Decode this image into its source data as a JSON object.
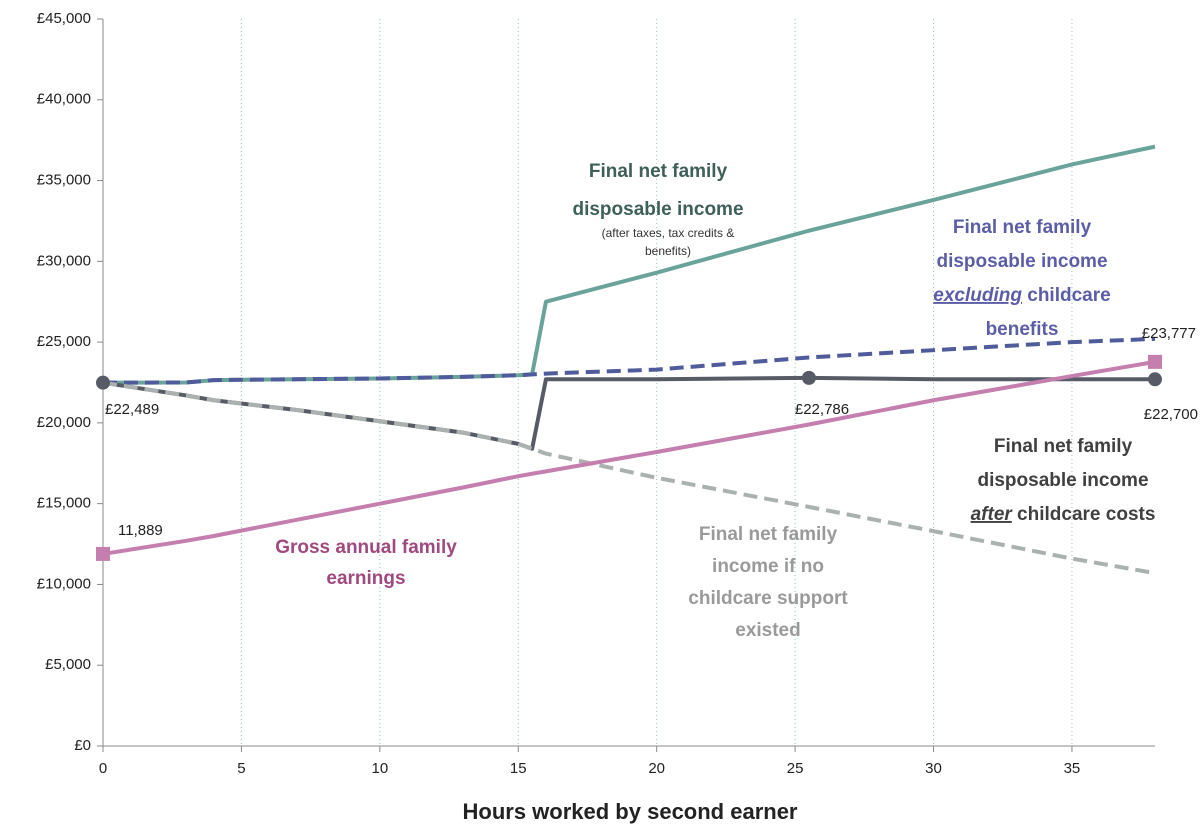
{
  "chart_data": {
    "type": "line",
    "x_label": "Hours worked by second earner",
    "x": [
      0,
      3,
      4,
      7,
      10,
      13,
      15,
      15.5,
      16,
      20,
      25.5,
      30,
      35,
      38
    ],
    "xlim": [
      0,
      38
    ],
    "xticks": [
      0,
      5,
      10,
      15,
      20,
      25,
      30,
      35
    ],
    "ylim": [
      0,
      45000
    ],
    "yticks": [
      {
        "value": 0,
        "label": "£0"
      },
      {
        "value": 5000,
        "label": "£5,000"
      },
      {
        "value": 10000,
        "label": "£10,000"
      },
      {
        "value": 15000,
        "label": "£15,000"
      },
      {
        "value": 20000,
        "label": "£20,000"
      },
      {
        "value": 25000,
        "label": "£25,000"
      },
      {
        "value": 30000,
        "label": "£30,000"
      },
      {
        "value": 35000,
        "label": "£35,000"
      },
      {
        "value": 40000,
        "label": "£40,000"
      },
      {
        "value": 45000,
        "label": "£45,000"
      }
    ],
    "grid": "x",
    "series": [
      {
        "name": [
          "Final net family",
          "disposable income"
        ],
        "note": [
          "(after taxes, tax credits &",
          "benefits)"
        ],
        "color": "#6aa39a",
        "label_color": "#3f5f59",
        "dash": false,
        "values": [
          22489,
          22500,
          22650,
          22700,
          22750,
          22850,
          22950,
          23000,
          27500,
          29300,
          31900,
          33800,
          36000,
          37100
        ]
      },
      {
        "name": [
          "Final net family",
          "disposable income",
          "excluding childcare",
          "benefits"
        ],
        "emphasis": "excluding",
        "color": "#4f5b9a",
        "label_color": "#5b5ea6",
        "dash": true,
        "values": [
          22489,
          22500,
          22650,
          22700,
          22750,
          22850,
          22950,
          23000,
          23050,
          23300,
          24050,
          24500,
          25000,
          25200
        ]
      },
      {
        "name": [
          "Final net family",
          "disposable income",
          "after childcare costs"
        ],
        "emphasis": "after",
        "color": "#565b66",
        "label_color": "#404040",
        "dash": false,
        "values": [
          22489,
          21700,
          21400,
          20800,
          20100,
          19400,
          18700,
          18400,
          22700,
          22700,
          22786,
          22700,
          22700,
          22700
        ],
        "value_labels": [
          "£22,489",
          null,
          null,
          null,
          null,
          null,
          null,
          null,
          null,
          null,
          "£22,786",
          null,
          null,
          "£22,700"
        ],
        "marker": "circle"
      },
      {
        "name": [
          "Final net family",
          "income if no",
          "childcare support",
          "existed"
        ],
        "color": "#aab1ae",
        "label_color": "#9a9a9a",
        "dash": true,
        "values": [
          22489,
          21700,
          21400,
          20800,
          20100,
          19400,
          18700,
          18400,
          18100,
          16600,
          14800,
          13300,
          11600,
          10700
        ]
      },
      {
        "name": [
          "Gross annual family",
          "earnings"
        ],
        "color": "#c47fae",
        "label_color": "#a0497f",
        "dash": false,
        "values": [
          11889,
          12700,
          13000,
          14000,
          15000,
          16000,
          16700,
          16850,
          17000,
          18200,
          19900,
          21400,
          22900,
          23777
        ],
        "value_labels": [
          "11,889",
          null,
          null,
          null,
          null,
          null,
          null,
          null,
          null,
          null,
          null,
          null,
          null,
          "£23,777"
        ],
        "marker": "square"
      }
    ]
  }
}
